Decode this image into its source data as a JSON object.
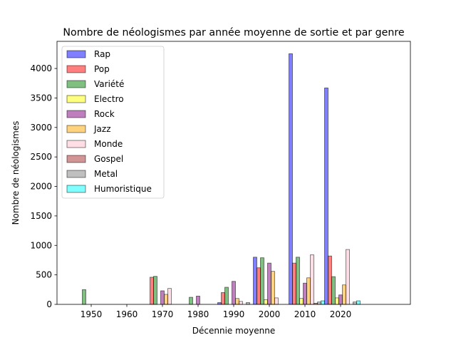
{
  "chart_data": {
    "type": "bar",
    "title": "Nombre de néologismes par année moyenne de sortie et par genre",
    "xlabel": "Décennie moyenne",
    "ylabel": "Nombre de néologismes",
    "categories": [
      "1950",
      "1960",
      "1970",
      "1980",
      "1990",
      "2000",
      "2010",
      "2020"
    ],
    "ylim": [
      0,
      4460
    ],
    "yticks": [
      0,
      500,
      1000,
      1500,
      2000,
      2500,
      3000,
      3500,
      4000
    ],
    "grid": false,
    "legend_position": "upper-left",
    "series": [
      {
        "name": "Rap",
        "color": "#0000ff",
        "values": [
          0,
          0,
          0,
          0,
          30,
          800,
          4250,
          3670
        ]
      },
      {
        "name": "Pop",
        "color": "#ff0000",
        "values": [
          0,
          0,
          460,
          0,
          200,
          620,
          700,
          820
        ]
      },
      {
        "name": "Variété",
        "color": "#008000",
        "values": [
          250,
          0,
          475,
          120,
          290,
          790,
          800,
          470
        ]
      },
      {
        "name": "Electro",
        "color": "#ffff00",
        "values": [
          0,
          0,
          0,
          0,
          0,
          80,
          100,
          110
        ]
      },
      {
        "name": "Rock",
        "color": "#800080",
        "values": [
          0,
          0,
          230,
          140,
          390,
          700,
          360,
          160
        ]
      },
      {
        "name": "Jazz",
        "color": "#ffa500",
        "values": [
          0,
          0,
          170,
          0,
          100,
          560,
          450,
          330
        ]
      },
      {
        "name": "Monde",
        "color": "#ffc0cb",
        "values": [
          0,
          0,
          270,
          0,
          50,
          110,
          840,
          930
        ]
      },
      {
        "name": "Gospel",
        "color": "#a52a2a",
        "values": [
          0,
          0,
          0,
          0,
          0,
          0,
          20,
          0
        ]
      },
      {
        "name": "Metal",
        "color": "#808080",
        "values": [
          0,
          0,
          0,
          0,
          30,
          0,
          40,
          40
        ]
      },
      {
        "name": "Humoristique",
        "color": "#00ffff",
        "values": [
          0,
          0,
          0,
          0,
          0,
          0,
          60,
          60
        ]
      }
    ]
  }
}
